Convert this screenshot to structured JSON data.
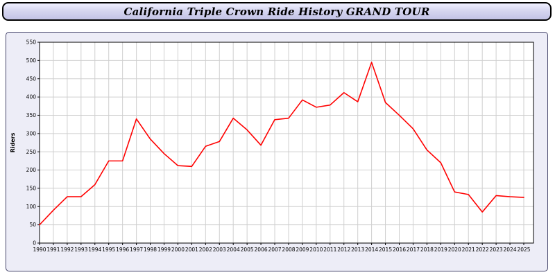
{
  "header": {
    "title": "California Triple Crown Ride History GRAND TOUR"
  },
  "chart_data": {
    "type": "line",
    "title": "California Triple Crown Ride History GRAND TOUR",
    "xlabel": "",
    "ylabel": "Riders",
    "ylim": [
      0,
      550
    ],
    "ytick_step": 50,
    "grid": true,
    "legend_position": "none",
    "line_color": "#ff0000",
    "x": [
      1990,
      1991,
      1992,
      1993,
      1994,
      1995,
      1996,
      1997,
      1998,
      1999,
      2000,
      2001,
      2002,
      2003,
      2004,
      2005,
      2006,
      2007,
      2008,
      2009,
      2010,
      2011,
      2012,
      2013,
      2014,
      2015,
      2016,
      2017,
      2018,
      2019,
      2020,
      2021,
      2022,
      2023,
      2024,
      2025
    ],
    "values": [
      50,
      90,
      127,
      127,
      160,
      225,
      225,
      340,
      285,
      245,
      212,
      210,
      265,
      278,
      342,
      310,
      268,
      338,
      342,
      392,
      372,
      378,
      412,
      387,
      495,
      385,
      350,
      313,
      255,
      220,
      140,
      133,
      85,
      130,
      127,
      125
    ]
  },
  "colors": {
    "accent_line": "#ff0000",
    "panel_background": "#ededf7",
    "grid_line": "#cfcfcf"
  }
}
